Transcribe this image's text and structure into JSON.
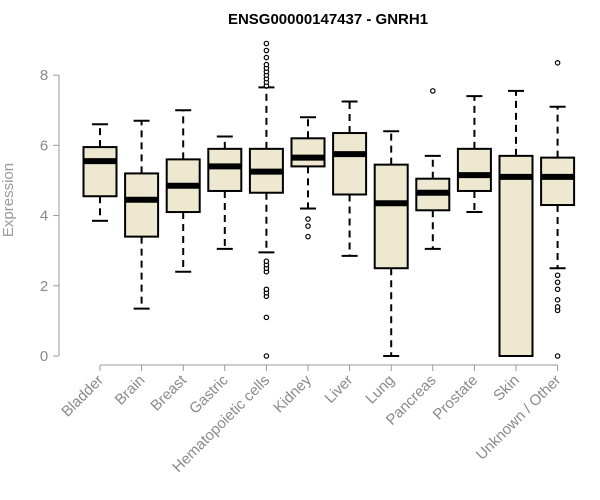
{
  "chart_data": {
    "type": "boxplot",
    "title": "ENSG00000147437 - GNRH1",
    "xlabel": "",
    "ylabel": "Expression",
    "ylim": [
      0,
      9
    ],
    "yticks": [
      0,
      2,
      4,
      6,
      8
    ],
    "colors": {
      "box_fill": "#efe8d0",
      "box_stroke": "#000000",
      "median": "#000000",
      "axis": "#9a9a9a"
    },
    "categories": [
      "Bladder",
      "Brain",
      "Breast",
      "Gastric",
      "Hematopoietic cells",
      "Kidney",
      "Liver",
      "Lung",
      "Pancreas",
      "Prostate",
      "Skin",
      "Unknown / Other"
    ],
    "boxes": [
      {
        "name": "Bladder",
        "whisker_low": 3.85,
        "q1": 4.55,
        "median": 5.55,
        "q3": 5.95,
        "whisker_high": 6.6,
        "outliers": []
      },
      {
        "name": "Brain",
        "whisker_low": 1.35,
        "q1": 3.4,
        "median": 4.45,
        "q3": 5.2,
        "whisker_high": 6.7,
        "outliers": []
      },
      {
        "name": "Breast",
        "whisker_low": 2.4,
        "q1": 4.1,
        "median": 4.85,
        "q3": 5.6,
        "whisker_high": 7.0,
        "outliers": []
      },
      {
        "name": "Gastric",
        "whisker_low": 3.05,
        "q1": 4.7,
        "median": 5.4,
        "q3": 5.9,
        "whisker_high": 6.25,
        "outliers": []
      },
      {
        "name": "Hematopoietic cells",
        "whisker_low": 2.95,
        "q1": 4.65,
        "median": 5.25,
        "q3": 5.9,
        "whisker_high": 7.65,
        "outliers": [
          0.0,
          1.1,
          1.7,
          1.8,
          1.9,
          2.4,
          2.5,
          2.6,
          2.7,
          7.7,
          7.8,
          7.9,
          8.0,
          8.1,
          8.2,
          8.3,
          8.5,
          8.7,
          8.9
        ]
      },
      {
        "name": "Kidney",
        "whisker_low": 4.2,
        "q1": 5.4,
        "median": 5.65,
        "q3": 6.2,
        "whisker_high": 6.8,
        "outliers": [
          3.4,
          3.7,
          3.9
        ]
      },
      {
        "name": "Liver",
        "whisker_low": 2.85,
        "q1": 4.6,
        "median": 5.75,
        "q3": 6.35,
        "whisker_high": 7.25,
        "outliers": []
      },
      {
        "name": "Lung",
        "whisker_low": 0.0,
        "q1": 2.5,
        "median": 4.35,
        "q3": 5.45,
        "whisker_high": 6.4,
        "outliers": []
      },
      {
        "name": "Pancreas",
        "whisker_low": 3.05,
        "q1": 4.15,
        "median": 4.65,
        "q3": 5.05,
        "whisker_high": 5.7,
        "outliers": [
          7.55
        ]
      },
      {
        "name": "Prostate",
        "whisker_low": 4.1,
        "q1": 4.7,
        "median": 5.15,
        "q3": 5.9,
        "whisker_high": 7.4,
        "outliers": []
      },
      {
        "name": "Skin",
        "whisker_low": 0.0,
        "q1": 0.0,
        "median": 5.1,
        "q3": 5.7,
        "whisker_high": 7.55,
        "outliers": []
      },
      {
        "name": "Unknown / Other",
        "whisker_low": 2.5,
        "q1": 4.3,
        "median": 5.1,
        "q3": 5.65,
        "whisker_high": 7.1,
        "outliers": [
          0.0,
          1.3,
          1.4,
          1.6,
          1.9,
          2.1,
          2.3,
          8.35
        ]
      }
    ]
  }
}
